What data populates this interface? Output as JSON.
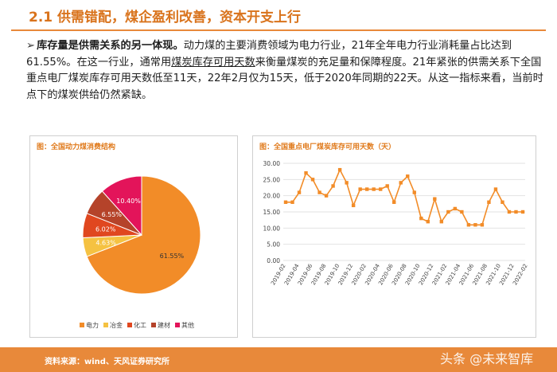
{
  "header": {
    "title": "2.1 供需错配，煤企盈利改善，资本开支上行"
  },
  "paragraph": {
    "bullet": "➢",
    "bold_lead": "库存量是供需关系的另一体现。",
    "text_1": "动力煤的主要消费领域为电力行业，21年全年电力行业消耗量占比达到61.55%。在这一行业，通常用",
    "underlined": "煤炭库存可用天数",
    "text_2": "来衡量煤炭的充足量和保障程度。21年紧张的供需关系下全国重点电厂煤炭库存可用天数低至11天，22年2月仅为15天，低于2020年同期的22天。从这一指标来看，当前时点下的煤炭供给仍然紧缺。"
  },
  "left_chart": {
    "title": "图：全国动力煤消费结构",
    "chart_data": {
      "type": "pie",
      "categories": [
        "电力",
        "冶金",
        "化工",
        "建材",
        "其他"
      ],
      "values": [
        61.55,
        4.63,
        6.02,
        6.55,
        10.4
      ],
      "labels": [
        "61.55%",
        "4.63%",
        "6.02%",
        "6.55%",
        "10.40%"
      ],
      "colors": [
        "#f28c28",
        "#f5c242",
        "#e0471f",
        "#b5432a",
        "#e3145a"
      ],
      "legend_position": "bottom"
    }
  },
  "right_chart": {
    "title": "图：全国重点电厂煤炭库存可用天数（天）",
    "chart_data": {
      "type": "line",
      "x_tick_labels": [
        "2019-02",
        "2019-04",
        "2019-06",
        "2019-08",
        "2019-10",
        "2019-12",
        "2020-02",
        "2020-04",
        "2020-06",
        "2020-08",
        "2020-10",
        "2020-12",
        "2021-02",
        "2021-04",
        "2021-06",
        "2021-08",
        "2021-10",
        "2021-12",
        "2022-02"
      ],
      "y_tick_labels": [
        "0.00",
        "5.00",
        "10.00",
        "15.00",
        "20.00",
        "25.00",
        "30.00"
      ],
      "ylim": [
        0,
        30
      ],
      "grid": true,
      "series": [
        {
          "color": "#f28c28",
          "values": [
            18,
            18,
            21,
            27,
            25,
            21,
            20,
            23,
            28,
            24,
            17,
            22,
            22,
            22,
            22,
            23,
            18,
            24,
            26,
            21,
            13,
            12,
            19,
            12,
            15,
            16,
            15,
            11,
            11,
            11,
            18,
            22,
            18,
            15,
            15,
            15
          ]
        }
      ]
    }
  },
  "footer": {
    "source": "资料来源：wind、天风证券研究所",
    "watermark": "头条 @未来智库"
  }
}
